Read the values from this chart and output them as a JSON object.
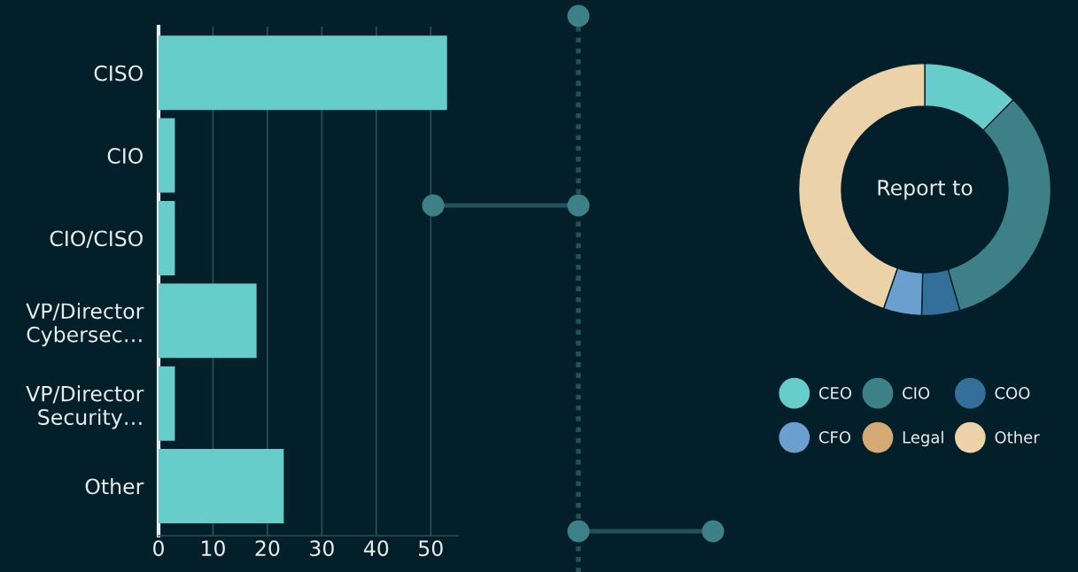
{
  "chart_data": [
    {
      "type": "bar",
      "orientation": "horizontal",
      "categories": [
        "CISO",
        "CIO",
        "CIO/CISO",
        "VP/Director\nCybersec…",
        "VP/Director\nSecurity…",
        "Other"
      ],
      "values": [
        53,
        3,
        3,
        18,
        3,
        23
      ],
      "color": "#66cdcb",
      "xlim": [
        0,
        55
      ],
      "xticks": [
        0,
        10,
        20,
        30,
        40,
        50
      ],
      "grid": "x"
    },
    {
      "type": "donut",
      "title": "Report to",
      "categories": [
        "CEO",
        "CIO",
        "COO",
        "CFO",
        "Legal",
        "Other"
      ],
      "values": [
        12.4,
        33.1,
        4.9,
        4.9,
        0,
        44.7
      ],
      "colors": [
        "#66cdcb",
        "#3d8087",
        "#346f99",
        "#6a9fd0",
        "#d6a974",
        "#ecd2a8"
      ],
      "legend": "bottom"
    }
  ]
}
